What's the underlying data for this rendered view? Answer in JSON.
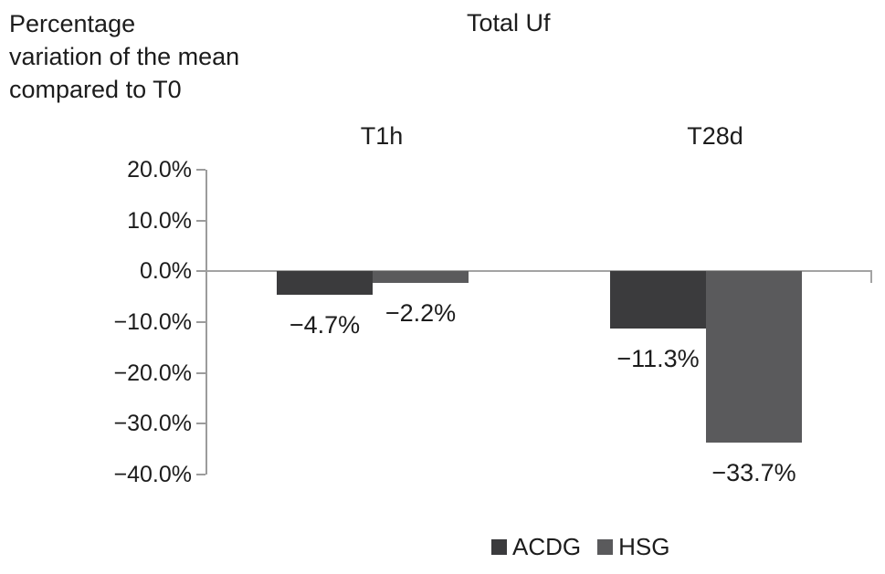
{
  "figure": {
    "y_axis_title": "Percentage\nvariation of the mean\ncompared to T0"
  },
  "chart_data": {
    "type": "bar",
    "title": "Total Uf",
    "ylabel": "Percentage variation of the mean compared to T0",
    "xlabel": "",
    "categories": [
      "T1h",
      "T28d"
    ],
    "series": [
      {
        "name": "ACDG",
        "color": "#3b3b3d",
        "values": [
          -4.7,
          -11.3
        ]
      },
      {
        "name": "HSG",
        "color": "#5a5a5c",
        "values": [
          -2.2,
          -33.7
        ]
      }
    ],
    "value_labels": [
      [
        "−4.7%",
        "−11.3%"
      ],
      [
        "−2.2%",
        "−33.7%"
      ]
    ],
    "yticks": [
      "20.0%",
      "10.0%",
      "0.0%",
      "−10.0%",
      "−20.0%",
      "−30.0%",
      "−40.0%"
    ],
    "ytick_values": [
      20,
      10,
      0,
      -10,
      -20,
      -30,
      -40
    ],
    "ylim": [
      -40,
      20
    ],
    "grid": false,
    "legend_position": "bottom"
  }
}
